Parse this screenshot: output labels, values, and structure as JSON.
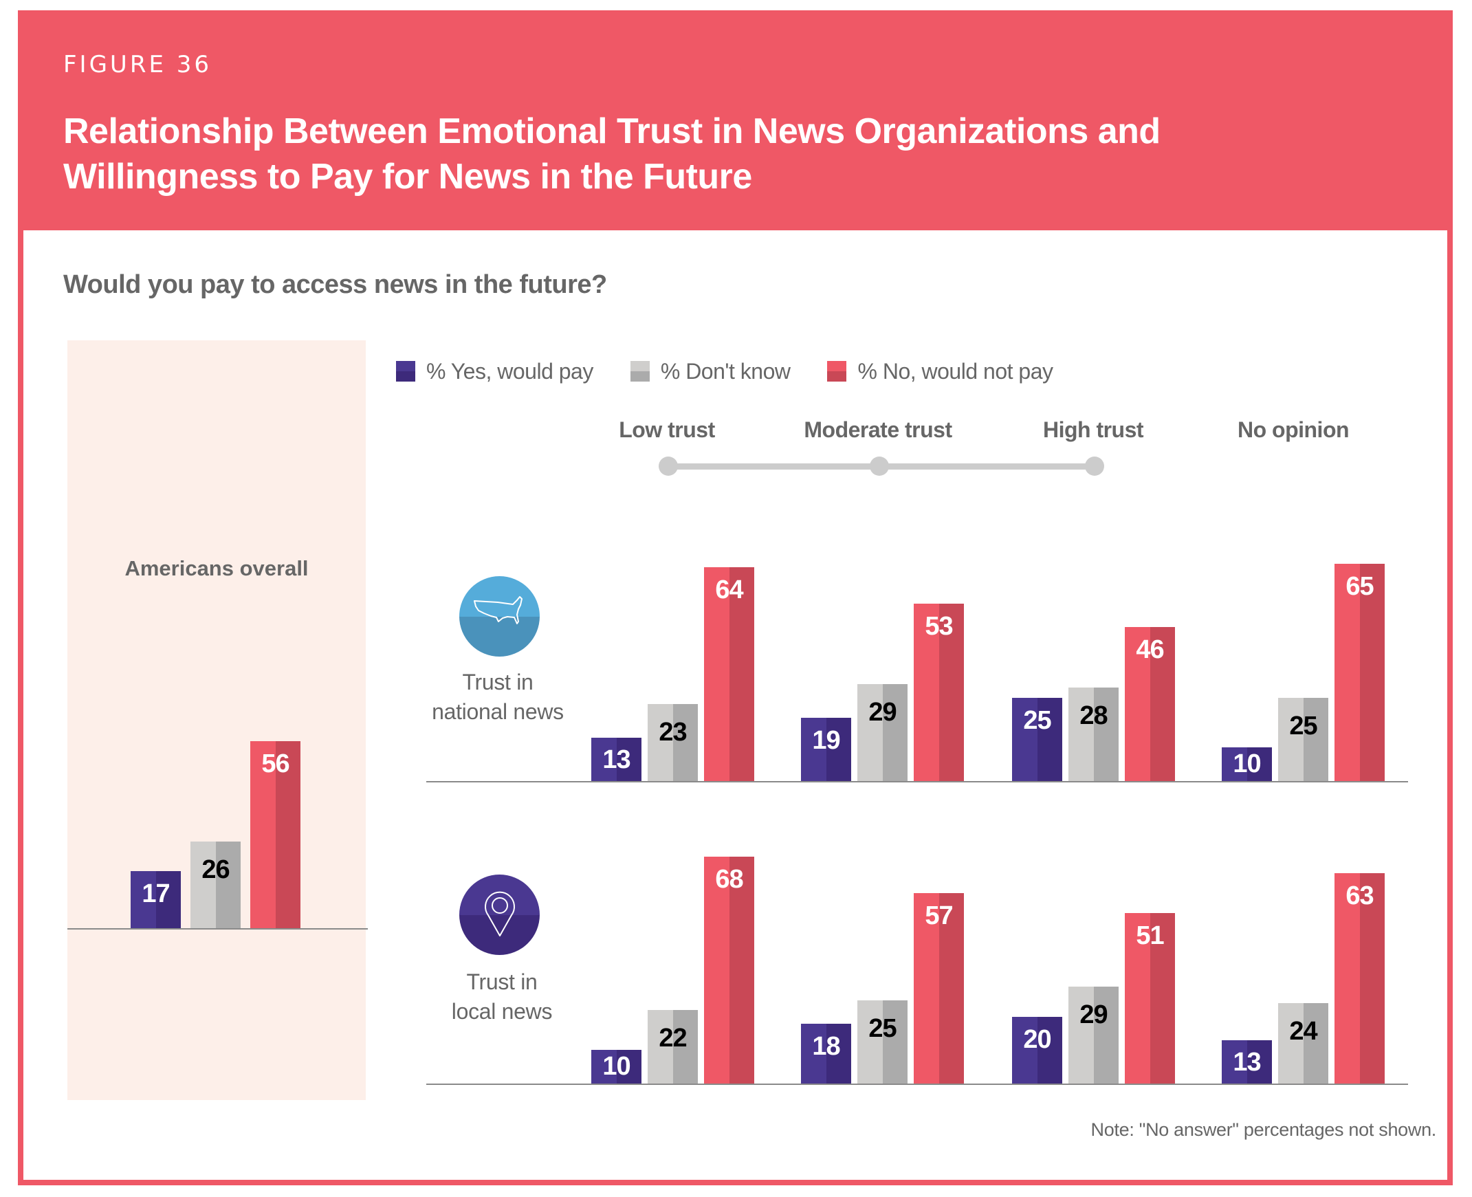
{
  "figure_label": "FIGURE 36",
  "title_line1": "Relationship Between Emotional Trust in News Organizations and",
  "title_line2": "Willingness to Pay for News in the Future",
  "question": "Would you pay to access news in the future?",
  "note": "Note: \"No answer\" percentages not shown.",
  "colors": {
    "frame": "#ef5866",
    "yes": [
      "#4a3891",
      "#3d2a7b"
    ],
    "dont_know": [
      "#cfcecc",
      "#ababab"
    ],
    "no": [
      "#ef5866",
      "#c94856"
    ],
    "panel_bg": "#fdefe9",
    "national_icon": [
      "#55acda",
      "#4a92bb"
    ],
    "local_icon": [
      "#4a3891",
      "#3d2a7b"
    ]
  },
  "icons": {
    "national": "us-map-icon",
    "local": "location-pin-icon"
  },
  "chart_data": {
    "type": "bar",
    "title": "Relationship Between Emotional Trust in News Organizations and Willingness to Pay for News in the Future",
    "subtitle": "Would you pay to access news in the future?",
    "legend": [
      "% Yes, would pay",
      "% Don't know",
      "% No, would not pay"
    ],
    "legend_position": "top",
    "categories": [
      "Low trust",
      "Moderate trust",
      "High trust",
      "No opinion"
    ],
    "overall": {
      "label": "Americans overall",
      "values": [
        17,
        26,
        56
      ]
    },
    "groups": [
      {
        "name": "Trust in national news",
        "label_line1": "Trust in",
        "label_line2": "national news",
        "series": [
          {
            "name": "% Yes, would pay",
            "values": [
              13,
              19,
              25,
              10
            ]
          },
          {
            "name": "% Don't know",
            "values": [
              23,
              29,
              28,
              25
            ]
          },
          {
            "name": "% No, would not pay",
            "values": [
              64,
              53,
              46,
              65
            ]
          }
        ]
      },
      {
        "name": "Trust in local news",
        "label_line1": "Trust in",
        "label_line2": "local news",
        "series": [
          {
            "name": "% Yes, would pay",
            "values": [
              10,
              18,
              20,
              13
            ]
          },
          {
            "name": "% Don't know",
            "values": [
              22,
              25,
              29,
              24
            ]
          },
          {
            "name": "% No, would not pay",
            "values": [
              68,
              57,
              51,
              63
            ]
          }
        ]
      }
    ],
    "xlabel": "",
    "ylabel": "",
    "ylim": [
      0,
      70
    ],
    "grid": false
  }
}
